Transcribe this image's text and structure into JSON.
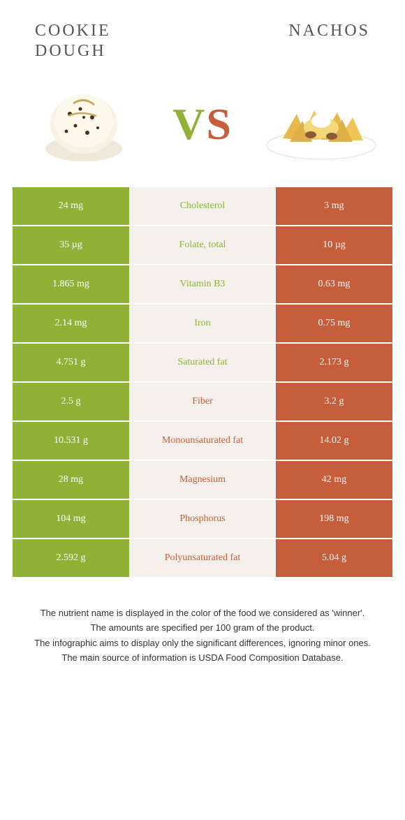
{
  "header": {
    "left_food": "COOKIE DOUGH",
    "right_food": "NACHOS",
    "vs_v": "V",
    "vs_s": "S"
  },
  "colors": {
    "left_bg": "#8fb236",
    "right_bg": "#c65d3b",
    "center_bg": "#f5f0eb",
    "title_color": "#555555"
  },
  "rows": [
    {
      "left": "24 mg",
      "label": "Cholesterol",
      "right": "3 mg",
      "winner": "green"
    },
    {
      "left": "35 µg",
      "label": "Folate, total",
      "right": "10 µg",
      "winner": "green"
    },
    {
      "left": "1.865 mg",
      "label": "Vitamin B3",
      "right": "0.63 mg",
      "winner": "green"
    },
    {
      "left": "2.14 mg",
      "label": "Iron",
      "right": "0.75 mg",
      "winner": "green"
    },
    {
      "left": "4.751 g",
      "label": "Saturated fat",
      "right": "2.173 g",
      "winner": "green"
    },
    {
      "left": "2.5 g",
      "label": "Fiber",
      "right": "3.2 g",
      "winner": "orange"
    },
    {
      "left": "10.531 g",
      "label": "Monounsaturated fat",
      "right": "14.02 g",
      "winner": "orange"
    },
    {
      "left": "28 mg",
      "label": "Magnesium",
      "right": "42 mg",
      "winner": "orange"
    },
    {
      "left": "104 mg",
      "label": "Phosphorus",
      "right": "198 mg",
      "winner": "orange"
    },
    {
      "left": "2.592 g",
      "label": "Polyunsaturated fat",
      "right": "5.04 g",
      "winner": "orange"
    }
  ],
  "footer": {
    "line1": "The nutrient name is displayed in the color of the food we considered as 'winner'.",
    "line2": "The amounts are specified per 100 gram of the product.",
    "line3": "The infographic aims to display only the significant differences, ignoring minor ones.",
    "line4": "The main source of information is USDA Food Composition Database."
  }
}
